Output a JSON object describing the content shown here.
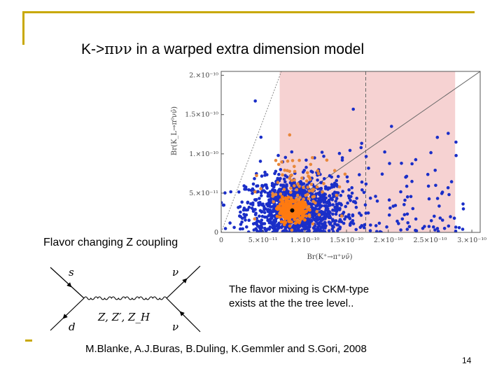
{
  "slide": {
    "title_prefix": "K->",
    "title_greek": "πνν",
    "title_suffix": " in a warped extra dimension model",
    "z_coupling_label": "Flavor changing Z coupling",
    "note_line1": "The flavor mixing is CKM-type",
    "note_line2": "exists at the the tree level..",
    "citation": "M.Blanke, A.J.Buras, B.Duling, K.Gemmler and S.Gori, 2008",
    "page_number": "14",
    "accent_color": "#c8a800"
  },
  "chart_data": {
    "type": "scatter",
    "title": "",
    "xlabel": "Br(K⁺→π⁺νν̄)",
    "ylabel": "Br(K_L→π⁰νν̄)",
    "xlim": [
      0,
      3.1e-10
    ],
    "ylim": [
      0,
      2.05e-10
    ],
    "x_ticks": [
      {
        "value": 0,
        "label": "0"
      },
      {
        "value": 5e-11,
        "label": "5.×10⁻¹¹"
      },
      {
        "value": 1e-10,
        "label": "1.×10⁻¹⁰"
      },
      {
        "value": 1.5e-10,
        "label": "1.5×10⁻¹⁰"
      },
      {
        "value": 2e-10,
        "label": "2.×10⁻¹⁰"
      },
      {
        "value": 2.5e-10,
        "label": "2.5×10⁻¹⁰"
      },
      {
        "value": 3e-10,
        "label": "3.×10⁻¹⁰"
      }
    ],
    "y_ticks": [
      {
        "value": 0,
        "label": "0"
      },
      {
        "value": 5e-11,
        "label": "5.×10⁻¹¹"
      },
      {
        "value": 1e-10,
        "label": "1.×10⁻¹⁰"
      },
      {
        "value": 1.5e-10,
        "label": "1.5×10⁻¹⁰"
      },
      {
        "value": 2e-10,
        "label": "2.×10⁻¹⁰"
      }
    ],
    "experimental_band": {
      "x_min": 7e-11,
      "x_max": 2.8e-10,
      "color": "#f6d2d2"
    },
    "grossman_nir_bound": [
      [
        0,
        0
      ],
      [
        7.2e-11,
        2.05e-10
      ]
    ],
    "sm_diagonal_line": [
      [
        1e-10,
        5e-11
      ],
      [
        3.1e-10,
        2.05e-10
      ]
    ],
    "central_value_dashed_x": 1.73e-10,
    "standard_model_point": {
      "x": 8.5e-11,
      "y": 2.8e-11
    },
    "sm_cluster_orange": {
      "center_x": 8.5e-11,
      "center_y": 2.8e-11,
      "spread_x": 8e-12,
      "spread_y": 6e-12,
      "count": 320,
      "color": "#ff7a10"
    },
    "series": [
      {
        "name": "points (blue)",
        "color": "#1a2ec8",
        "count": 1100,
        "center_x": 9e-11,
        "center_y": 3e-11,
        "spread_x": 3e-11,
        "spread_y": 2e-11,
        "tail_count": 170
      },
      {
        "name": "points (orange)",
        "color": "#e8873a",
        "count": 110,
        "center_x": 9e-11,
        "center_y": 5e-11,
        "spread_x": 2e-11,
        "spread_y": 2.5e-11
      }
    ]
  },
  "feynman": {
    "top_left_label": "s",
    "bottom_left_label": "d",
    "top_right_label": "ν",
    "bottom_right_label": "ν",
    "propagator_label": "Z, Z′, Z_H"
  }
}
